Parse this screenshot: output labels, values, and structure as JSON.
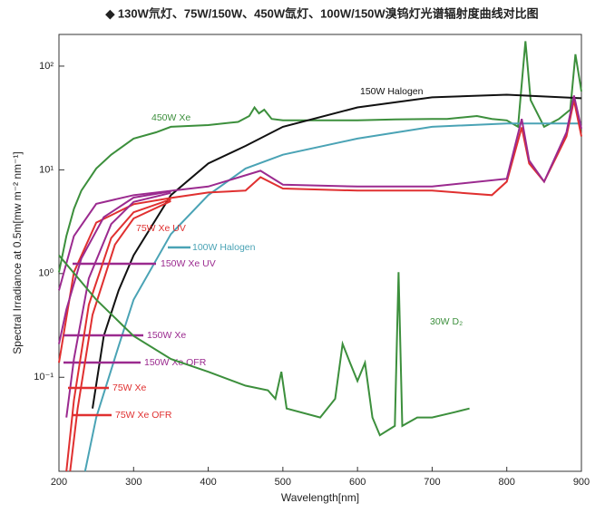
{
  "chart_data": {
    "type": "line",
    "title": "◆ 130W氘灯、75W/150W、450W氙灯、100W/150W溴钨灯光谱辐射度曲线对比图",
    "x_label": "Wavelength[nm]",
    "y_label": "Spectral Irradiance at 0.5m[mw m⁻² nm⁻¹]",
    "xlim": [
      200,
      900
    ],
    "xticks": [
      200,
      300,
      400,
      500,
      600,
      700,
      800,
      900
    ],
    "ylim": [
      0.0124,
      202
    ],
    "log_y": true,
    "yticks": [
      {
        "value": 0.1,
        "label": "10⁻¹"
      },
      {
        "value": 1,
        "label": "10⁰"
      },
      {
        "value": 10,
        "label": "10¹"
      },
      {
        "value": 100,
        "label": "10²"
      }
    ],
    "series": [
      {
        "name": "450W Xe",
        "color": "#3c8f3c",
        "x": [
          200,
          210,
          220,
          230,
          250,
          270,
          300,
          330,
          350,
          400,
          440,
          455,
          462,
          468,
          475,
          485,
          500,
          550,
          600,
          650,
          700,
          720,
          760,
          780,
          800,
          815,
          825,
          832,
          850,
          870,
          885,
          892,
          900
        ],
        "values": [
          1.03,
          2.3,
          4.2,
          6.3,
          10.3,
          14,
          20,
          23,
          26,
          27,
          29,
          33,
          40,
          35,
          38,
          31,
          30,
          30,
          30,
          30.6,
          31,
          31,
          33,
          31,
          30,
          26,
          174,
          47,
          26,
          31,
          38,
          130,
          57
        ]
      },
      {
        "name": "150W Halogen",
        "color": "#111111",
        "x": [
          245,
          260,
          280,
          300,
          350,
          400,
          450,
          500,
          600,
          700,
          800,
          900
        ],
        "values": [
          0.05,
          0.25,
          0.69,
          1.5,
          5.7,
          11.5,
          17,
          26,
          40,
          50,
          53,
          49
        ]
      },
      {
        "name": "100W Halogen",
        "color": "#4aa3b5",
        "x": [
          235,
          250,
          280,
          300,
          350,
          400,
          450,
          500,
          600,
          700,
          800,
          900
        ],
        "values": [
          0.0124,
          0.041,
          0.2,
          0.56,
          2.4,
          5.7,
          10.3,
          14,
          20,
          26,
          28,
          28
        ]
      },
      {
        "name": "75W Xe UV",
        "color": "#e03030",
        "x": [
          200,
          220,
          250,
          300,
          350,
          400,
          450,
          470,
          500,
          600,
          700,
          780,
          800,
          820,
          830,
          850,
          880,
          890,
          900
        ],
        "values": [
          0.138,
          1.03,
          3.1,
          4.66,
          5.36,
          6.05,
          6.3,
          8.5,
          6.6,
          6.3,
          6.3,
          5.7,
          7.7,
          25.7,
          11.5,
          7.7,
          21,
          47,
          21
        ]
      },
      {
        "name": "150W Xe UV",
        "color": "#9b2a8f",
        "x": [
          200,
          220,
          250,
          300,
          400,
          470,
          500,
          600,
          700,
          800,
          820,
          830,
          850,
          880,
          890,
          900
        ],
        "values": [
          0.69,
          2.3,
          4.7,
          5.7,
          6.9,
          9.8,
          7.2,
          6.9,
          6.9,
          8.2,
          31,
          12.3,
          7.7,
          23,
          52,
          25
        ]
      },
      {
        "name": "150W Xe",
        "color": "#9b2a8f",
        "x": [
          200,
          210,
          230,
          260,
          300,
          350
        ],
        "values": [
          0.21,
          0.45,
          1.4,
          3.5,
          5.4,
          6.2
        ]
      },
      {
        "name": "150W Xe OFR",
        "color": "#9b2a8f",
        "x": [
          210,
          220,
          240,
          270,
          300,
          350
        ],
        "values": [
          0.041,
          0.15,
          0.9,
          3,
          4.9,
          6
        ]
      },
      {
        "name": "75W Xe",
        "color": "#e03030",
        "x": [
          210,
          220,
          240,
          270,
          300,
          350
        ],
        "values": [
          0.0124,
          0.06,
          0.5,
          2.2,
          3.9,
          5.2
        ]
      },
      {
        "name": "75W Xe OFR",
        "color": "#e03030",
        "x": [
          215,
          225,
          245,
          275,
          300,
          350
        ],
        "values": [
          0.0124,
          0.05,
          0.4,
          1.9,
          3.4,
          5
        ]
      },
      {
        "name": "30W D₂",
        "color": "#3c8f3c",
        "x": [
          200,
          250,
          300,
          350,
          400,
          450,
          480,
          490,
          498,
          505,
          550,
          570,
          580,
          590,
          600,
          610,
          620,
          630,
          650,
          655,
          660,
          680,
          700,
          730,
          750
        ],
        "values": [
          1.5,
          0.56,
          0.25,
          0.15,
          0.113,
          0.083,
          0.075,
          0.062,
          0.113,
          0.05,
          0.041,
          0.062,
          0.21,
          0.138,
          0.092,
          0.138,
          0.041,
          0.0276,
          0.034,
          1.03,
          0.034,
          0.041,
          0.041,
          0.046,
          0.05
        ]
      }
    ]
  }
}
